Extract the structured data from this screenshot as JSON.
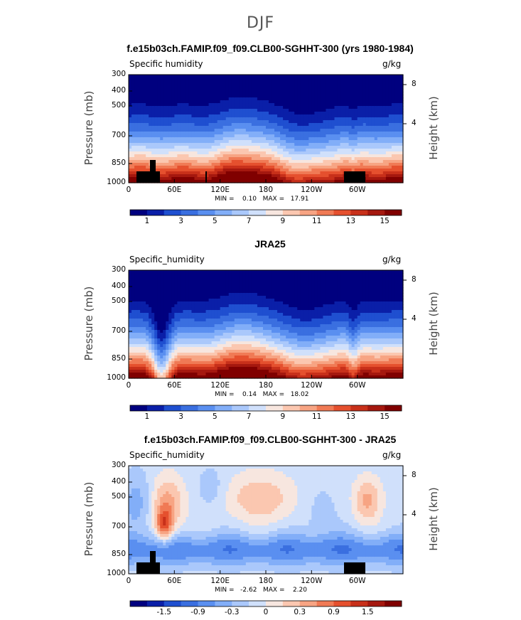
{
  "figure": {
    "title": "DJF"
  },
  "chart_data": [
    {
      "type": "heatmap",
      "title": "f.e15b03ch.FAMIP.f09_f09.CLB00-SGHHT-300 (yrs 1980-1984)",
      "variable_label": "Specific humidity",
      "units": "g/kg",
      "ylabel": "Pressure (mb)",
      "ylabel_right": "Height (km)",
      "x_ticks": [
        "0",
        "60E",
        "120E",
        "180",
        "120W",
        "60W"
      ],
      "y_ticks": [
        "300",
        "400",
        "500",
        "700",
        "850",
        "1000"
      ],
      "y_right_ticks": [
        "8",
        "4"
      ],
      "ylim": [
        1000,
        300
      ],
      "y_scale": "log",
      "min_max_text": "MIN =    0.10   MAX =   17.91",
      "colorbar_labels": [
        "1",
        "3",
        "5",
        "7",
        "9",
        "11",
        "13",
        "15"
      ],
      "colormap": "blue-white-red"
    },
    {
      "type": "heatmap",
      "title": "JRA25",
      "variable_label": "Specific_humidity",
      "units": "g/kg",
      "ylabel": "Pressure (mb)",
      "ylabel_right": "Height (km)",
      "x_ticks": [
        "0",
        "60E",
        "120E",
        "180",
        "120W",
        "60W"
      ],
      "y_ticks": [
        "300",
        "400",
        "500",
        "700",
        "850",
        "1000"
      ],
      "y_right_ticks": [
        "8",
        "4"
      ],
      "ylim": [
        1000,
        300
      ],
      "y_scale": "log",
      "min_max_text": "MIN =    0.14   MAX =   18.02",
      "colorbar_labels": [
        "1",
        "3",
        "5",
        "7",
        "9",
        "11",
        "13",
        "15"
      ],
      "colormap": "blue-white-red"
    },
    {
      "type": "heatmap",
      "title": "f.e15b03ch.FAMIP.f09_f09.CLB00-SGHHT-300 - JRA25",
      "variable_label": "Specific_humidity",
      "units": "g/kg",
      "ylabel": "Pressure (mb)",
      "ylabel_right": "Height (km)",
      "x_ticks": [
        "0",
        "60E",
        "120E",
        "180",
        "120W",
        "60W"
      ],
      "y_ticks": [
        "300",
        "400",
        "500",
        "700",
        "850",
        "1000"
      ],
      "y_right_ticks": [
        "8",
        "4"
      ],
      "ylim": [
        1000,
        300
      ],
      "y_scale": "log",
      "min_max_text": "MIN =   -2.62   MAX =    2.20",
      "colorbar_labels": [
        "-1.5",
        "-0.9",
        "-0.3",
        "0",
        "0.3",
        "0.9",
        "1.5"
      ],
      "colormap": "blue-white-red"
    }
  ],
  "colors": {
    "palette": [
      "#00007f",
      "#0a1fa8",
      "#1f4fd0",
      "#3a6fe0",
      "#5a8ff0",
      "#82aef8",
      "#aac8fb",
      "#d0e0fb",
      "#f7e6df",
      "#fbc7b0",
      "#f7a483",
      "#f07a55",
      "#e5502e",
      "#c8301a",
      "#a5180f",
      "#800000"
    ]
  }
}
